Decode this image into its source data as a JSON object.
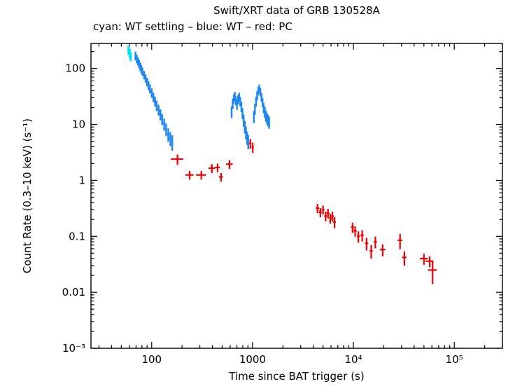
{
  "header": {
    "title": "Swift/XRT data of GRB 130528A",
    "subtitle": "cyan: WT settling – blue: WT – red: PC"
  },
  "chart_data": {
    "type": "scatter",
    "title": "Swift/XRT data of GRB 130528A",
    "subtitle": "cyan: WT settling – blue: WT – red: PC",
    "xlabel": "Time since BAT trigger (s)",
    "ylabel": "Count Rate (0.3–10 keV) (s⁻¹)",
    "xscale": "log",
    "yscale": "log",
    "xlim": [
      25,
      300000
    ],
    "ylim": [
      0.001,
      280
    ],
    "grid": false,
    "legend_position": "subtitle-text",
    "x_ticks": [
      {
        "v": 100,
        "label": "100"
      },
      {
        "v": 1000,
        "label": "1000"
      },
      {
        "v": 10000,
        "label": "10⁴"
      },
      {
        "v": 100000,
        "label": "10⁵"
      }
    ],
    "y_ticks": [
      {
        "v": 0.001,
        "label": "10⁻³"
      },
      {
        "v": 0.01,
        "label": "0.01"
      },
      {
        "v": 0.1,
        "label": "0.1"
      },
      {
        "v": 1,
        "label": "1"
      },
      {
        "v": 10,
        "label": "10"
      },
      {
        "v": 100,
        "label": "100"
      }
    ],
    "series": [
      {
        "name": "WT settling",
        "mode": "errorbar",
        "color": "#00e0f2",
        "stroke_width": 3,
        "points": [
          [
            59,
            1,
            215,
            40
          ],
          [
            60.5,
            1,
            190,
            35
          ],
          [
            62,
            1,
            165,
            30
          ]
        ]
      },
      {
        "name": "WT",
        "mode": "errorbar",
        "color": "#1c86ee",
        "stroke_width": 2.4,
        "points": [
          [
            69,
            1,
            170,
            30
          ],
          [
            71,
            1,
            150,
            26
          ],
          [
            73,
            1,
            136,
            23
          ],
          [
            75,
            1,
            122,
            21
          ],
          [
            77,
            1,
            109,
            19
          ],
          [
            79,
            1,
            98,
            17
          ],
          [
            81,
            1,
            89,
            15
          ],
          [
            84,
            1.5,
            77,
            13
          ],
          [
            87,
            1.5,
            67,
            11
          ],
          [
            90,
            1.5,
            58,
            10
          ],
          [
            93,
            1.5,
            50,
            9
          ],
          [
            96,
            1.5,
            44,
            8
          ],
          [
            100,
            2,
            37,
            7
          ],
          [
            104,
            2,
            31,
            6
          ],
          [
            108,
            2,
            26,
            5.2
          ],
          [
            112,
            2,
            22,
            4.6
          ],
          [
            117,
            2.5,
            18.4,
            4
          ],
          [
            122,
            2.5,
            15.2,
            3.4
          ],
          [
            127,
            2.5,
            12.6,
            2.9
          ],
          [
            133,
            3,
            10.2,
            2.5
          ],
          [
            139,
            3,
            8.3,
            2.1
          ],
          [
            146,
            3.5,
            6.7,
            1.8
          ],
          [
            153,
            3.5,
            5.7,
            1.6
          ],
          [
            160,
            3.5,
            4.9,
            1.5
          ],
          [
            620,
            8,
            17,
            4
          ],
          [
            636,
            8,
            24,
            5
          ],
          [
            652,
            8,
            29,
            5.5
          ],
          [
            668,
            8,
            32,
            6
          ],
          [
            684,
            8,
            27,
            5
          ],
          [
            700,
            8,
            23,
            4.8
          ],
          [
            718,
            9,
            28,
            5.2
          ],
          [
            736,
            9,
            31,
            5.8
          ],
          [
            755,
            9,
            26,
            5
          ],
          [
            775,
            10,
            21,
            4.4
          ],
          [
            795,
            10,
            16,
            3.6
          ],
          [
            816,
            10,
            12,
            2.9
          ],
          [
            838,
            11,
            9.2,
            2.3
          ],
          [
            860,
            11,
            7.3,
            1.9
          ],
          [
            883,
            11,
            5.9,
            1.6
          ],
          [
            906,
            12,
            5.0,
            1.4
          ],
          [
            1030,
            12,
            14,
            3.4
          ],
          [
            1056,
            13,
            19,
            4.2
          ],
          [
            1083,
            13,
            26,
            5.2
          ],
          [
            1110,
            13,
            33,
            6.2
          ],
          [
            1138,
            14,
            40,
            7
          ],
          [
            1167,
            14,
            44,
            7.6
          ],
          [
            1196,
            14,
            38,
            6.6
          ],
          [
            1226,
            15,
            31,
            5.6
          ],
          [
            1257,
            15,
            25,
            4.8
          ],
          [
            1289,
            16,
            20,
            4.2
          ],
          [
            1322,
            16,
            17,
            3.8
          ],
          [
            1356,
            17,
            14.5,
            3.3
          ],
          [
            1390,
            17,
            13,
            3
          ],
          [
            1425,
            18,
            12,
            2.8
          ],
          [
            1461,
            18,
            11,
            2.6
          ]
        ]
      },
      {
        "name": "PC",
        "mode": "errorbar",
        "color": "#ee0000",
        "stroke_width": 2.2,
        "points": [
          [
            180,
            25,
            2.4,
            0.5
          ],
          [
            238,
            22,
            1.25,
            0.22
          ],
          [
            310,
            35,
            1.25,
            0.22
          ],
          [
            395,
            30,
            1.65,
            0.3
          ],
          [
            450,
            25,
            1.7,
            0.3
          ],
          [
            487,
            22,
            1.15,
            0.2
          ],
          [
            590,
            45,
            1.95,
            0.35
          ],
          [
            950,
            25,
            4.6,
            0.9
          ],
          [
            1005,
            25,
            3.9,
            0.8
          ],
          [
            4400,
            180,
            0.32,
            0.06
          ],
          [
            4700,
            160,
            0.27,
            0.05
          ],
          [
            5000,
            170,
            0.3,
            0.055
          ],
          [
            5300,
            170,
            0.23,
            0.045
          ],
          [
            5600,
            180,
            0.26,
            0.05
          ],
          [
            5900,
            180,
            0.21,
            0.042
          ],
          [
            6200,
            190,
            0.23,
            0.045
          ],
          [
            6500,
            200,
            0.18,
            0.04
          ],
          [
            9800,
            350,
            0.145,
            0.03
          ],
          [
            10400,
            380,
            0.125,
            0.026
          ],
          [
            11200,
            400,
            0.1,
            0.023
          ],
          [
            12200,
            450,
            0.105,
            0.024
          ],
          [
            13500,
            500,
            0.075,
            0.019
          ],
          [
            15000,
            550,
            0.055,
            0.015
          ],
          [
            16500,
            600,
            0.08,
            0.019
          ],
          [
            19500,
            1200,
            0.058,
            0.014
          ],
          [
            29000,
            1500,
            0.085,
            0.026
          ],
          [
            32000,
            1600,
            0.042,
            0.012
          ],
          [
            50000,
            4500,
            0.04,
            0.009
          ],
          [
            57000,
            5000,
            0.036,
            0.008
          ],
          [
            61000,
            6000,
            0.025,
            0.011
          ]
        ]
      }
    ]
  },
  "colors": {
    "background": "#ffffff",
    "axis": "#000000",
    "wt_settling": "#00e0f2",
    "wt": "#1c86ee",
    "pc": "#ee0000"
  }
}
